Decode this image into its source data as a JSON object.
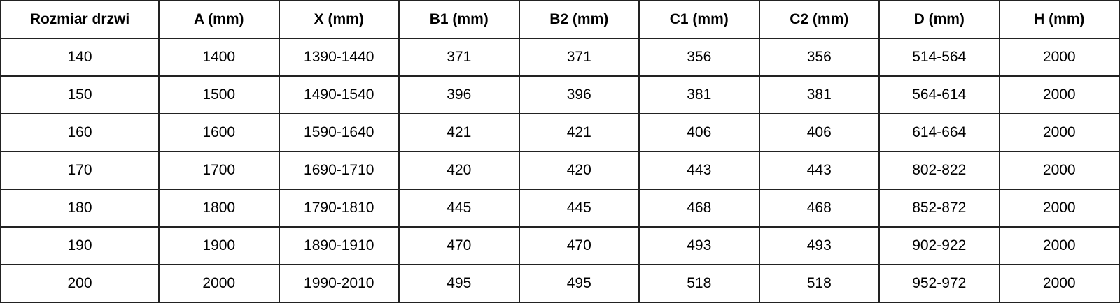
{
  "table": {
    "headers": [
      "Rozmiar drzwi",
      "A (mm)",
      "X (mm)",
      "B1 (mm)",
      "B2 (mm)",
      "C1 (mm)",
      "C2 (mm)",
      "D (mm)",
      "H (mm)"
    ],
    "rows": [
      [
        "140",
        "1400",
        "1390-1440",
        "371",
        "371",
        "356",
        "356",
        "514-564",
        "2000"
      ],
      [
        "150",
        "1500",
        "1490-1540",
        "396",
        "396",
        "381",
        "381",
        "564-614",
        "2000"
      ],
      [
        "160",
        "1600",
        "1590-1640",
        "421",
        "421",
        "406",
        "406",
        "614-664",
        "2000"
      ],
      [
        "170",
        "1700",
        "1690-1710",
        "420",
        "420",
        "443",
        "443",
        "802-822",
        "2000"
      ],
      [
        "180",
        "1800",
        "1790-1810",
        "445",
        "445",
        "468",
        "468",
        "852-872",
        "2000"
      ],
      [
        "190",
        "1900",
        "1890-1910",
        "470",
        "470",
        "493",
        "493",
        "902-922",
        "2000"
      ],
      [
        "200",
        "2000",
        "1990-2010",
        "495",
        "495",
        "518",
        "518",
        "952-972",
        "2000"
      ]
    ]
  }
}
